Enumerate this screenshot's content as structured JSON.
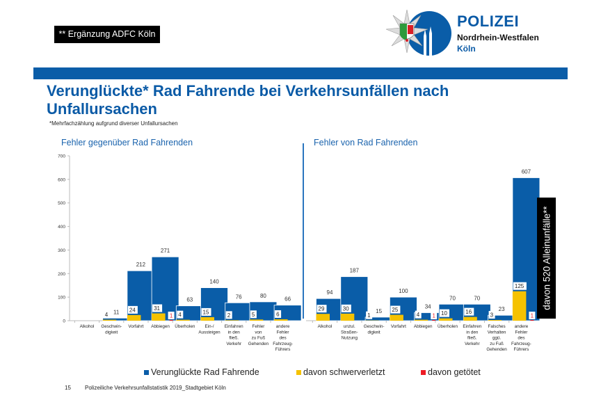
{
  "adfc_note": "** Ergänzung ADFC Köln",
  "logo": {
    "line1": "POLIZEI",
    "line2": "Nordrhein-Westfalen",
    "line3": "Köln",
    "icon": "police-star-badge-icon"
  },
  "title": "Verunglückte* Rad Fahrende bei Verkehrsunfällen nach Unfallursachen",
  "subnote": "*Mehrfachzählung aufgrund diverser Unfallursachen",
  "callout": "davon 520 Alleinunfälle**",
  "footer": {
    "page": "15",
    "source": "Polizeiliche Verkehrsunfallstatistik 2019_Stadtgebiet Köln"
  },
  "colors": {
    "total": "#0a5da8",
    "severe": "#f5c200",
    "killed": "#ee1c25",
    "accent": "#0a5aa6"
  },
  "chart_data": [
    {
      "type": "bar",
      "title": "Fehler gegenüber Rad Fahrenden",
      "xlabel": "",
      "ylabel": "",
      "ylim": [
        0,
        700
      ],
      "yticks": [
        0,
        100,
        200,
        300,
        400,
        500,
        600,
        700
      ],
      "grid": false,
      "legend": "bottom",
      "categories": [
        "Alkohol",
        "Geschwin-\ndigkeit",
        "Vorfahrt",
        "Abbiegen",
        "Überholen",
        "Ein-/\nAussteigen",
        "Einfahren\nin den\nfließ.\nVerkehr",
        "Fehler\nvon\nzu Fuß\nGehenden",
        "andere\nFehler\ndes\nFahrzeug-\nFührers"
      ],
      "series": [
        {
          "name": "Verunglückte Rad Fahrende",
          "values": [
            0,
            11,
            212,
            271,
            63,
            140,
            76,
            80,
            66
          ]
        },
        {
          "name": "davon schwerverletzt",
          "values": [
            0,
            4,
            24,
            31,
            4,
            15,
            2,
            5,
            6
          ]
        },
        {
          "name": "davon getötet",
          "values": [
            0,
            0,
            0,
            1,
            0,
            0,
            0,
            0,
            0
          ]
        }
      ]
    },
    {
      "type": "bar",
      "title": "Fehler von Rad Fahrenden",
      "xlabel": "",
      "ylabel": "",
      "ylim": [
        0,
        700
      ],
      "grid": false,
      "legend": "bottom",
      "categories": [
        "Alkohol",
        "unzul.\nStraßen-\nNutzung",
        "Geschwin-\ndigkeit",
        "Vorfahrt",
        "Abbiegen",
        "Überholen",
        "Einfahren\nin den\nfließ.\nVerkehr",
        "Falsches\nVerhalten\nggü.\nzu Fuß\nGehenden",
        "andere\nFehler\ndes\nFahrzeug-\nFührers"
      ],
      "series": [
        {
          "name": "Verunglückte Rad Fahrende",
          "values": [
            94,
            187,
            15,
            100,
            34,
            70,
            70,
            23,
            607
          ]
        },
        {
          "name": "davon schwerverletzt",
          "values": [
            29,
            30,
            1,
            25,
            4,
            10,
            16,
            3,
            125
          ]
        },
        {
          "name": "davon getötet",
          "values": [
            0,
            0,
            0,
            0,
            1,
            0,
            0,
            0,
            1
          ]
        }
      ]
    }
  ],
  "legend": [
    {
      "label": "Verunglückte Rad Fahrende",
      "color": "#0a5da8"
    },
    {
      "label": "davon schwerverletzt",
      "color": "#f5c200"
    },
    {
      "label": "davon getötet",
      "color": "#ee1c25"
    }
  ]
}
